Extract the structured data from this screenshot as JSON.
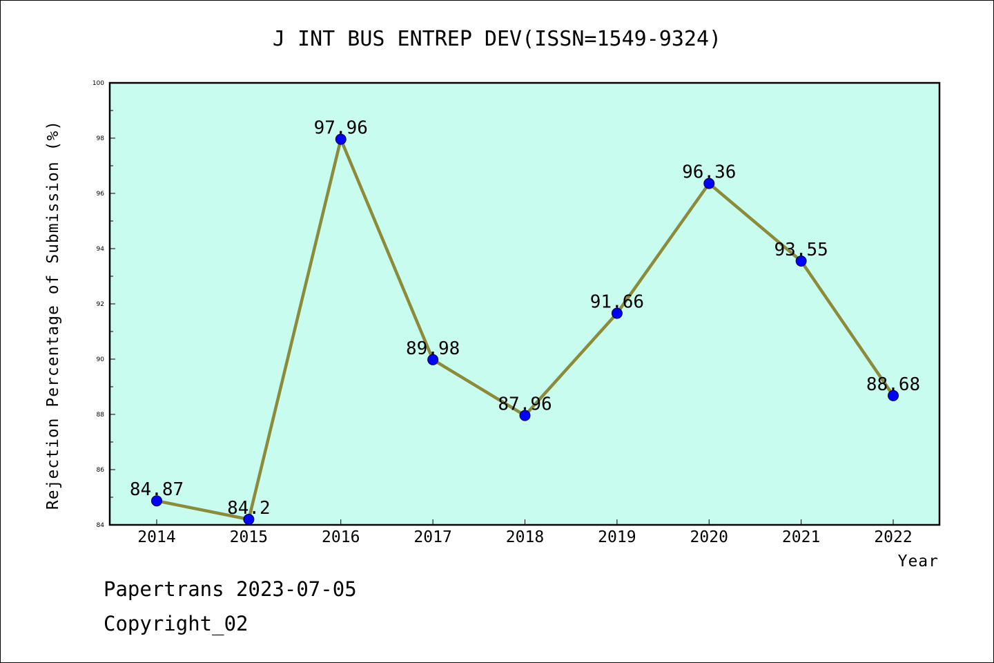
{
  "chart_data": {
    "type": "line",
    "title": "J INT BUS ENTREP DEV(ISSN=1549-9324)",
    "xlabel": "Year",
    "ylabel": "Rejection Percentage of Submission (%)",
    "categories": [
      "2014",
      "2015",
      "2016",
      "2017",
      "2018",
      "2019",
      "2020",
      "2021",
      "2022"
    ],
    "series": [
      {
        "values": [
          84.87,
          84.2,
          97.96,
          89.98,
          87.96,
          91.66,
          96.36,
          93.55,
          88.68
        ],
        "labels": [
          "84.87",
          "84.2",
          "97.96",
          "89.98",
          "87.96",
          "91.66",
          "96.36",
          "93.55",
          "88.68"
        ]
      }
    ],
    "ylim": [
      84,
      100
    ],
    "yticks": [
      "84",
      "86",
      "88",
      "90",
      "92",
      "94",
      "96",
      "98",
      "100"
    ],
    "grid": false,
    "legend": "none",
    "colors": {
      "plot_background": "#c8fcee",
      "line": "#8b8b3a",
      "marker": "#0000ff"
    }
  },
  "footer": {
    "line1": "Papertrans 2023-07-05",
    "line2": "Copyright_02"
  }
}
